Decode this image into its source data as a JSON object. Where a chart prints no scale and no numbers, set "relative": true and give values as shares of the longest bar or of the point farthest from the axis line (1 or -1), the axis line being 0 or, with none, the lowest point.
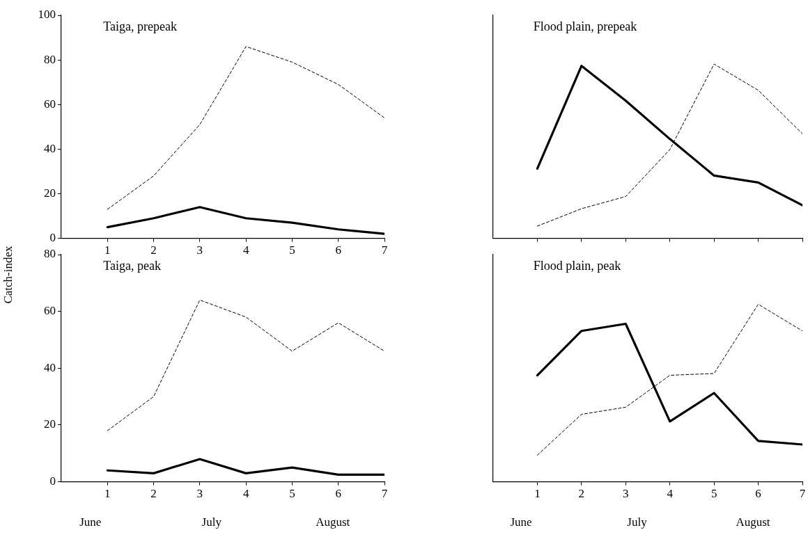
{
  "chart_data": [
    {
      "type": "line",
      "title": "Taiga, prepeak",
      "ylabel": "Catch-index",
      "x": [
        1,
        2,
        3,
        4,
        5,
        6,
        7
      ],
      "xlim": [
        0,
        7
      ],
      "xticks": [
        1,
        2,
        3,
        4,
        5,
        6,
        7
      ],
      "ylim": [
        0,
        100
      ],
      "yticks": [
        0,
        20,
        40,
        60,
        80,
        100
      ],
      "marker": "none",
      "series": [
        {
          "color": "#000000",
          "line_style": "dashed",
          "values": [
            13,
            28,
            51,
            86,
            79,
            69,
            54
          ]
        },
        {
          "color": "#000000",
          "line_style": "solid",
          "values": [
            5,
            9,
            14,
            9,
            7,
            4,
            2
          ]
        }
      ]
    },
    {
      "type": "line",
      "title": "Flood plain, prepeak",
      "relative": true,
      "x": [
        1,
        2,
        3,
        4,
        5,
        6,
        7
      ],
      "xlim": [
        0,
        7
      ],
      "xticks": [
        {
          "value": 1,
          "label": null
        },
        {
          "value": 2,
          "label": null
        },
        {
          "value": 3,
          "label": null
        },
        {
          "value": 4,
          "label": null
        },
        {
          "value": 5,
          "label": null
        },
        {
          "value": 6,
          "label": null
        },
        {
          "value": 7,
          "label": null
        }
      ],
      "tick_labels": false,
      "marker": "none",
      "series": [
        {
          "color": "#000000",
          "line_style": "dashed",
          "values": [
            0.07,
            0.17,
            0.24,
            0.51,
            1,
            0.85,
            0.6
          ]
        },
        {
          "color": "#000000",
          "line_style": "solid",
          "values": [
            0.4,
            0.99,
            0.79,
            0.57,
            0.36,
            0.32,
            0.19
          ]
        }
      ]
    },
    {
      "type": "line",
      "title": "Taiga, peak",
      "x": [
        1,
        2,
        3,
        4,
        5,
        6,
        7
      ],
      "xlim": [
        0,
        7
      ],
      "xticks": [
        1,
        2,
        3,
        4,
        5,
        6,
        7
      ],
      "ylim": [
        0,
        80
      ],
      "yticks": [
        0,
        20,
        40,
        60,
        80
      ],
      "marker": "none",
      "annotations": [
        "June",
        "July",
        "August"
      ],
      "series": [
        {
          "color": "#000000",
          "line_style": "dashed",
          "values": [
            18,
            30,
            64,
            58,
            46,
            56,
            46
          ]
        },
        {
          "color": "#000000",
          "line_style": "solid",
          "values": [
            4,
            3,
            8,
            3,
            5,
            2.5,
            2.5
          ]
        }
      ]
    },
    {
      "type": "line",
      "title": "Flood plain, peak",
      "relative": true,
      "x": [
        1,
        2,
        3,
        4,
        5,
        6,
        7
      ],
      "xlim": [
        0,
        7
      ],
      "xticks": [
        1,
        2,
        3,
        4,
        5,
        6,
        7
      ],
      "tick_labels": "x",
      "marker": "none",
      "annotations": [
        "June",
        "July",
        "August"
      ],
      "series": [
        {
          "color": "#000000",
          "line_style": "dashed",
          "values": [
            0.15,
            0.38,
            0.42,
            0.6,
            0.61,
            1,
            0.85
          ]
        },
        {
          "color": "#000000",
          "line_style": "solid",
          "values": [
            0.6,
            0.85,
            0.89,
            0.34,
            0.5,
            0.23,
            0.21
          ]
        }
      ]
    }
  ]
}
